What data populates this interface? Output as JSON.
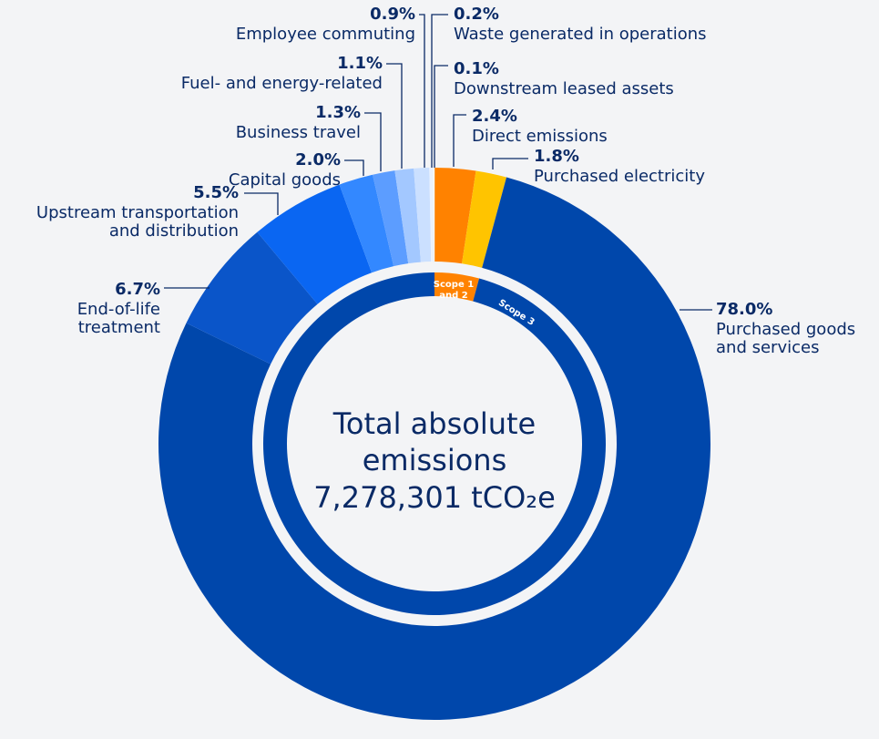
{
  "chart_data": {
    "type": "donut",
    "title": "Total absolute emissions",
    "subtitle": "7,278,301 tCO₂e",
    "categories": [
      "Direct emissions",
      "Purchased electricity",
      "Purchased goods and services",
      "End-of-life treatment",
      "Upstream transportation and distribution",
      "Capital goods",
      "Business travel",
      "Fuel- and energy-related",
      "Employee commuting",
      "Waste generated in operations",
      "Downstream leased assets"
    ],
    "values": [
      2.4,
      1.8,
      78.0,
      6.7,
      5.5,
      2.0,
      1.3,
      1.1,
      0.9,
      0.2,
      0.1
    ],
    "value_labels": [
      "2.4%",
      "1.8%",
      "78.0%",
      "6.7%",
      "5.5%",
      "2.0%",
      "1.3%",
      "1.1%",
      "0.9%",
      "0.2%",
      "0.1%"
    ],
    "colors": [
      "#ff8200",
      "#ffc400",
      "#0047ab",
      "#0a55c9",
      "#0a66f2",
      "#3388ff",
      "#5c9dff",
      "#a3c8ff",
      "#cbe0ff",
      "#eaf2ff",
      "#ffffff"
    ],
    "inner_ring": {
      "categories": [
        "Scope 1 and 2",
        "Scope 3"
      ],
      "values": [
        4.2,
        95.8
      ],
      "colors": [
        "#ff8200",
        "#0047ab"
      ]
    }
  }
}
